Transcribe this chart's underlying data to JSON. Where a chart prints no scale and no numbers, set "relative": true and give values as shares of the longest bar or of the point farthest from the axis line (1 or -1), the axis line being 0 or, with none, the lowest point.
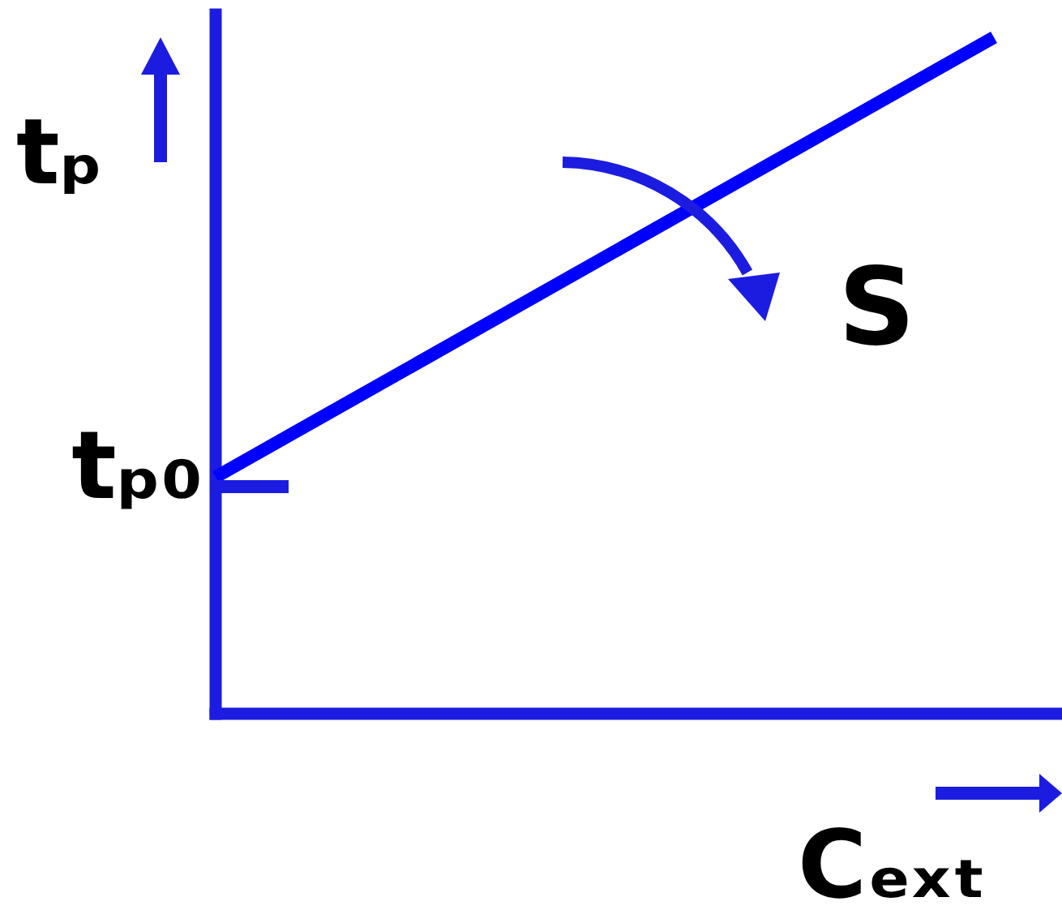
{
  "chart_data": {
    "type": "line",
    "relative": true,
    "xlabel": "Cₑₓₜ",
    "ylabel": "tₚ",
    "categories": [
      null,
      null
    ],
    "series": [
      {
        "color": "#0000ff",
        "values": [
          0.35,
          1
        ]
      }
    ],
    "annotations": [
      "tₚ₀",
      "S"
    ]
  }
}
